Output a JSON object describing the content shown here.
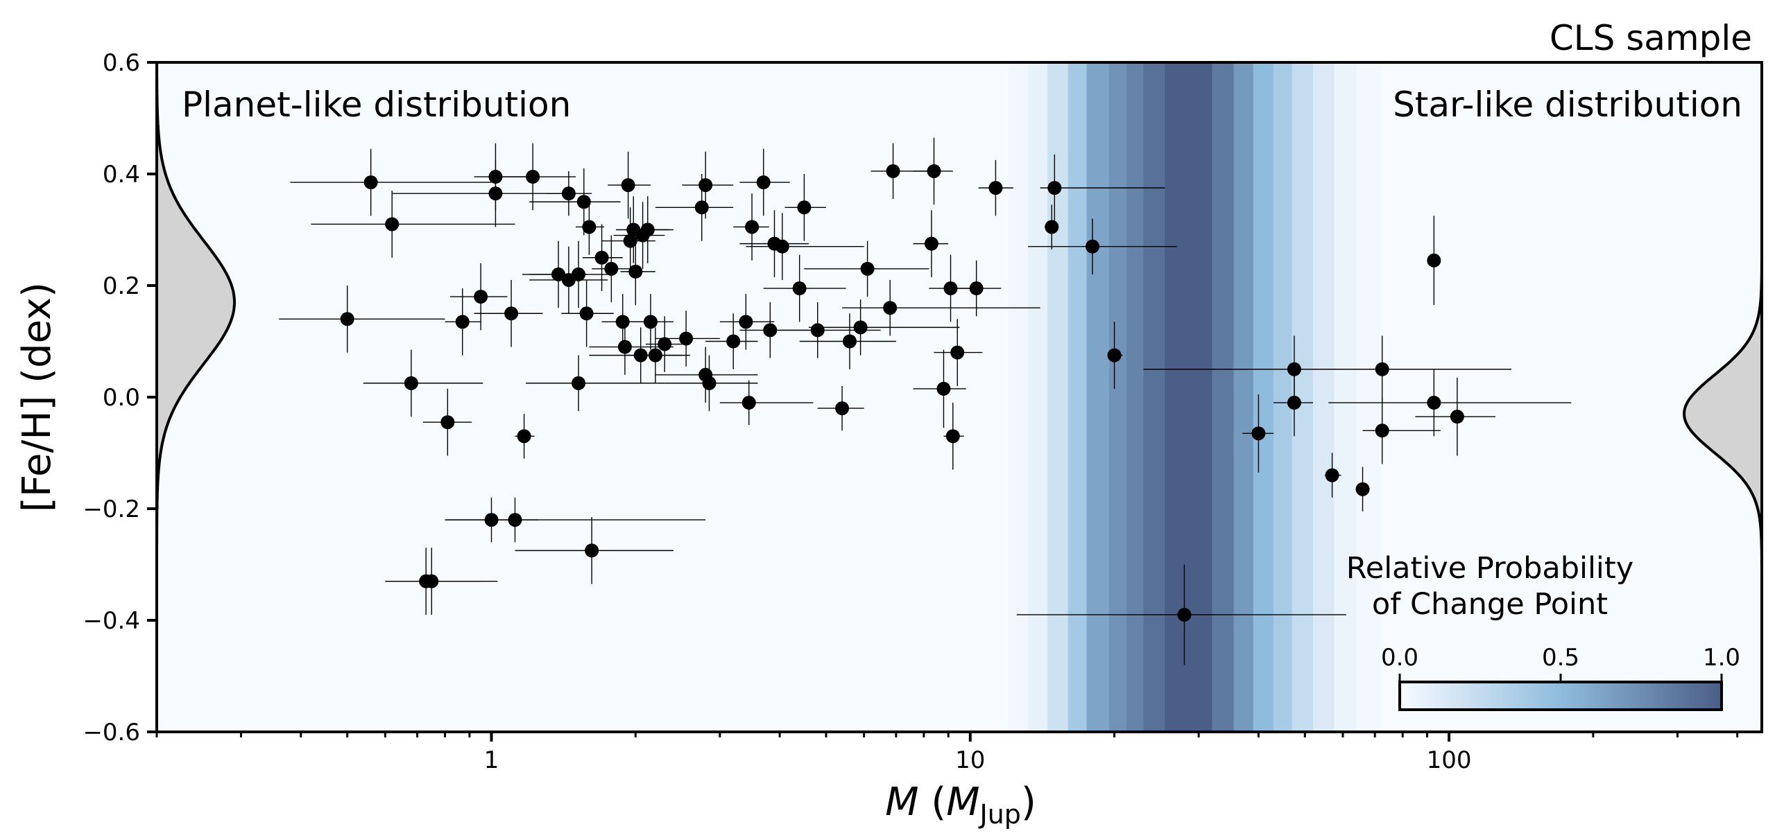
{
  "chart_data": {
    "type": "scatter",
    "title": "CLS sample",
    "xlabel": {
      "symbol": "M",
      "open": " (",
      "unit": "M",
      "unit_sub": "Jup",
      "close": ")"
    },
    "ylabel": "[Fe/H] (dex)",
    "x_scale": "log",
    "xlim": [
      0.2,
      450
    ],
    "ylim": [
      -0.6,
      0.6
    ],
    "x_ticks": [
      {
        "value": 1,
        "label": "1"
      },
      {
        "value": 10,
        "label": "10"
      },
      {
        "value": 100,
        "label": "100"
      }
    ],
    "y_ticks": [
      {
        "value": 0.6,
        "label": "0.6"
      },
      {
        "value": 0.4,
        "label": "0.4"
      },
      {
        "value": 0.2,
        "label": "0.2"
      },
      {
        "value": 0.0,
        "label": "0.0"
      },
      {
        "value": -0.2,
        "label": "−0.2"
      },
      {
        "value": -0.4,
        "label": "−0.4"
      },
      {
        "value": -0.6,
        "label": "−0.6"
      }
    ],
    "annotations": {
      "left": "Planet-like distribution",
      "right": "Star-like distribution"
    },
    "planet_distribution": {
      "mean": 0.17,
      "sigma": 0.11,
      "color": "#d3d3d3"
    },
    "star_distribution": {
      "mean": -0.03,
      "sigma": 0.07,
      "color": "#d3d3d3"
    },
    "change_point_bands": [
      {
        "x0": 0.2,
        "x1": 12,
        "p": 0.0
      },
      {
        "x0": 12,
        "x1": 13.2,
        "p": 0.03
      },
      {
        "x0": 13.2,
        "x1": 14.5,
        "p": 0.08
      },
      {
        "x0": 14.5,
        "x1": 16.0,
        "p": 0.2
      },
      {
        "x0": 16.0,
        "x1": 17.5,
        "p": 0.4
      },
      {
        "x0": 17.5,
        "x1": 19.5,
        "p": 0.62
      },
      {
        "x0": 19.5,
        "x1": 21.2,
        "p": 0.72
      },
      {
        "x0": 21.2,
        "x1": 23.0,
        "p": 0.8
      },
      {
        "x0": 23.0,
        "x1": 25.5,
        "p": 0.9
      },
      {
        "x0": 25.5,
        "x1": 32.0,
        "p": 1.0
      },
      {
        "x0": 32.0,
        "x1": 35.5,
        "p": 0.85
      },
      {
        "x0": 35.5,
        "x1": 39.0,
        "p": 0.68
      },
      {
        "x0": 39.0,
        "x1": 43.0,
        "p": 0.5
      },
      {
        "x0": 43.0,
        "x1": 47.0,
        "p": 0.38
      },
      {
        "x0": 47.0,
        "x1": 52.0,
        "p": 0.25
      },
      {
        "x0": 52.0,
        "x1": 57.5,
        "p": 0.14
      },
      {
        "x0": 57.5,
        "x1": 64.0,
        "p": 0.06
      },
      {
        "x0": 64.0,
        "x1": 72.0,
        "p": 0.02
      },
      {
        "x0": 72.0,
        "x1": 450,
        "p": 0.0
      }
    ],
    "colorbar": {
      "title_line1": "Relative Probability",
      "title_line2": "of Change Point",
      "ticks": [
        {
          "value": 0.0,
          "label": "0.0"
        },
        {
          "value": 0.5,
          "label": "0.5"
        },
        {
          "value": 1.0,
          "label": "1.0"
        }
      ],
      "color_low": "#f7fbff",
      "color_mid": "#8fbcdd",
      "color_high": "#4a5e87"
    },
    "points": [
      {
        "x": 0.5,
        "y": 0.14,
        "xlo": 0.36,
        "xhi": 0.8,
        "ye": 0.06
      },
      {
        "x": 0.56,
        "y": 0.385,
        "xlo": 0.38,
        "xhi": 1.0,
        "ye": 0.06
      },
      {
        "x": 0.62,
        "y": 0.31,
        "xlo": 0.42,
        "xhi": 1.12,
        "ye": 0.06
      },
      {
        "x": 0.68,
        "y": 0.025,
        "xlo": 0.54,
        "xhi": 0.96,
        "ye": 0.06
      },
      {
        "x": 0.73,
        "y": -0.33,
        "xlo": 0.6,
        "xhi": 0.95,
        "ye": 0.06
      },
      {
        "x": 0.75,
        "y": -0.33,
        "xlo": 0.6,
        "xhi": 1.03,
        "ye": 0.06
      },
      {
        "x": 0.81,
        "y": -0.045,
        "xlo": 0.72,
        "xhi": 0.91,
        "ye": 0.06
      },
      {
        "x": 0.87,
        "y": 0.135,
        "xlo": 0.8,
        "xhi": 0.95,
        "ye": 0.06
      },
      {
        "x": 0.95,
        "y": 0.18,
        "xlo": 0.82,
        "xhi": 1.08,
        "ye": 0.06
      },
      {
        "x": 1.0,
        "y": -0.22,
        "xlo": 0.8,
        "xhi": 1.25,
        "ye": 0.04
      },
      {
        "x": 1.02,
        "y": 0.395,
        "xlo": 0.92,
        "xhi": 1.18,
        "ye": 0.06
      },
      {
        "x": 1.02,
        "y": 0.365,
        "xlo": 0.62,
        "xhi": 1.42,
        "ye": 0.06
      },
      {
        "x": 1.1,
        "y": 0.15,
        "xlo": 0.92,
        "xhi": 1.28,
        "ye": 0.06
      },
      {
        "x": 1.12,
        "y": -0.22,
        "xlo": 0.8,
        "xhi": 2.8,
        "ye": 0.04
      },
      {
        "x": 1.17,
        "y": -0.07,
        "xlo": 1.12,
        "xhi": 1.23,
        "ye": 0.04
      },
      {
        "x": 1.22,
        "y": 0.395,
        "xlo": 1.04,
        "xhi": 1.5,
        "ye": 0.06
      },
      {
        "x": 1.38,
        "y": 0.22,
        "xlo": 1.16,
        "xhi": 1.58,
        "ye": 0.06
      },
      {
        "x": 1.45,
        "y": 0.365,
        "xlo": 1.3,
        "xhi": 1.62,
        "ye": 0.04
      },
      {
        "x": 1.45,
        "y": 0.21,
        "xlo": 1.2,
        "xhi": 1.75,
        "ye": 0.06
      },
      {
        "x": 1.52,
        "y": 0.22,
        "xlo": 1.2,
        "xhi": 1.8,
        "ye": 0.06
      },
      {
        "x": 1.52,
        "y": 0.025,
        "xlo": 1.18,
        "xhi": 2.3,
        "ye": 0.05
      },
      {
        "x": 1.56,
        "y": 0.35,
        "xlo": 1.2,
        "xhi": 1.86,
        "ye": 0.06
      },
      {
        "x": 1.58,
        "y": 0.15,
        "xlo": 1.4,
        "xhi": 1.8,
        "ye": 0.06
      },
      {
        "x": 1.6,
        "y": 0.305,
        "xlo": 1.5,
        "xhi": 1.72,
        "ye": 0.05
      },
      {
        "x": 1.62,
        "y": -0.275,
        "xlo": 1.12,
        "xhi": 2.4,
        "ye": 0.06
      },
      {
        "x": 1.7,
        "y": 0.25,
        "xlo": 1.55,
        "xhi": 1.88,
        "ye": 0.06
      },
      {
        "x": 1.78,
        "y": 0.23,
        "xlo": 1.62,
        "xhi": 1.96,
        "ye": 0.06
      },
      {
        "x": 1.88,
        "y": 0.135,
        "xlo": 1.7,
        "xhi": 2.12,
        "ye": 0.05
      },
      {
        "x": 1.9,
        "y": 0.09,
        "xlo": 1.6,
        "xhi": 2.4,
        "ye": 0.05
      },
      {
        "x": 1.93,
        "y": 0.38,
        "xlo": 1.75,
        "xhi": 2.15,
        "ye": 0.06
      },
      {
        "x": 1.95,
        "y": 0.28,
        "xlo": 1.7,
        "xhi": 2.2,
        "ye": 0.06
      },
      {
        "x": 1.98,
        "y": 0.3,
        "xlo": 1.82,
        "xhi": 2.35,
        "ye": 0.06
      },
      {
        "x": 2.0,
        "y": 0.225,
        "xlo": 1.86,
        "xhi": 2.2,
        "ye": 0.06
      },
      {
        "x": 2.05,
        "y": 0.075,
        "xlo": 1.6,
        "xhi": 2.6,
        "ye": 0.05
      },
      {
        "x": 2.07,
        "y": 0.29,
        "xlo": 1.8,
        "xhi": 2.3,
        "ye": 0.06
      },
      {
        "x": 2.12,
        "y": 0.3,
        "xlo": 1.9,
        "xhi": 2.4,
        "ye": 0.06
      },
      {
        "x": 2.15,
        "y": 0.135,
        "xlo": 1.95,
        "xhi": 2.4,
        "ye": 0.05
      },
      {
        "x": 2.2,
        "y": 0.075,
        "xlo": 1.9,
        "xhi": 2.5,
        "ye": 0.05
      },
      {
        "x": 2.3,
        "y": 0.095,
        "xlo": 2.1,
        "xhi": 2.6,
        "ye": 0.05
      },
      {
        "x": 2.55,
        "y": 0.105,
        "xlo": 2.2,
        "xhi": 3.0,
        "ye": 0.05
      },
      {
        "x": 2.75,
        "y": 0.34,
        "xlo": 2.2,
        "xhi": 3.2,
        "ye": 0.06
      },
      {
        "x": 2.8,
        "y": 0.38,
        "xlo": 2.5,
        "xhi": 3.2,
        "ye": 0.06
      },
      {
        "x": 2.8,
        "y": 0.04,
        "xlo": 2.2,
        "xhi": 3.6,
        "ye": 0.05
      },
      {
        "x": 2.85,
        "y": 0.025,
        "xlo": 2.3,
        "xhi": 3.6,
        "ye": 0.05
      },
      {
        "x": 3.2,
        "y": 0.1,
        "xlo": 2.8,
        "xhi": 3.6,
        "ye": 0.05
      },
      {
        "x": 3.4,
        "y": 0.135,
        "xlo": 3.0,
        "xhi": 3.9,
        "ye": 0.05
      },
      {
        "x": 3.45,
        "y": -0.01,
        "xlo": 3.0,
        "xhi": 4.7,
        "ye": 0.04
      },
      {
        "x": 3.5,
        "y": 0.305,
        "xlo": 3.2,
        "xhi": 3.8,
        "ye": 0.06
      },
      {
        "x": 3.7,
        "y": 0.385,
        "xlo": 3.3,
        "xhi": 4.2,
        "ye": 0.06
      },
      {
        "x": 3.82,
        "y": 0.12,
        "xlo": 3.3,
        "xhi": 4.6,
        "ye": 0.05
      },
      {
        "x": 3.9,
        "y": 0.275,
        "xlo": 3.3,
        "xhi": 4.6,
        "ye": 0.06
      },
      {
        "x": 4.05,
        "y": 0.27,
        "xlo": 3.4,
        "xhi": 6.0,
        "ye": 0.06
      },
      {
        "x": 4.4,
        "y": 0.195,
        "xlo": 3.7,
        "xhi": 5.5,
        "ye": 0.06
      },
      {
        "x": 4.5,
        "y": 0.34,
        "xlo": 4.1,
        "xhi": 5.0,
        "ye": 0.06
      },
      {
        "x": 4.8,
        "y": 0.12,
        "xlo": 4.0,
        "xhi": 6.5,
        "ye": 0.05
      },
      {
        "x": 5.4,
        "y": -0.02,
        "xlo": 4.8,
        "xhi": 6.0,
        "ye": 0.04
      },
      {
        "x": 5.6,
        "y": 0.1,
        "xlo": 4.4,
        "xhi": 7.0,
        "ye": 0.05
      },
      {
        "x": 5.9,
        "y": 0.125,
        "xlo": 4.6,
        "xhi": 9.5,
        "ye": 0.05
      },
      {
        "x": 6.1,
        "y": 0.23,
        "xlo": 4.5,
        "xhi": 8.2,
        "ye": 0.05
      },
      {
        "x": 6.8,
        "y": 0.16,
        "xlo": 5.4,
        "xhi": 14.0,
        "ye": 0.05
      },
      {
        "x": 6.9,
        "y": 0.405,
        "xlo": 6.2,
        "xhi": 8.6,
        "ye": 0.05
      },
      {
        "x": 8.3,
        "y": 0.275,
        "xlo": 7.6,
        "xhi": 9.0,
        "ye": 0.06
      },
      {
        "x": 8.4,
        "y": 0.405,
        "xlo": 7.6,
        "xhi": 9.2,
        "ye": 0.06
      },
      {
        "x": 8.8,
        "y": 0.015,
        "xlo": 7.6,
        "xhi": 9.8,
        "ye": 0.07
      },
      {
        "x": 9.1,
        "y": 0.195,
        "xlo": 8.2,
        "xhi": 10.3,
        "ye": 0.06
      },
      {
        "x": 9.2,
        "y": -0.07,
        "xlo": 8.8,
        "xhi": 9.7,
        "ye": 0.06
      },
      {
        "x": 9.4,
        "y": 0.08,
        "xlo": 8.4,
        "xhi": 10.6,
        "ye": 0.06
      },
      {
        "x": 10.3,
        "y": 0.195,
        "xlo": 9.2,
        "xhi": 11.6,
        "ye": 0.05
      },
      {
        "x": 11.3,
        "y": 0.375,
        "xlo": 10.4,
        "xhi": 12.3,
        "ye": 0.05
      },
      {
        "x": 14.8,
        "y": 0.305,
        "xlo": 14.3,
        "xhi": 15.2,
        "ye": 0.04
      },
      {
        "x": 15.0,
        "y": 0.375,
        "xlo": 14.0,
        "xhi": 25.5,
        "ye": 0.06
      },
      {
        "x": 18.0,
        "y": 0.27,
        "xlo": 13.2,
        "xhi": 27.0,
        "ye": 0.05
      },
      {
        "x": 20.0,
        "y": 0.075,
        "xlo": 19.5,
        "xhi": 20.8,
        "ye": 0.06
      },
      {
        "x": 28.0,
        "y": -0.39,
        "xlo": 12.5,
        "xhi": 61.0,
        "ye": 0.09
      },
      {
        "x": 40.0,
        "y": -0.065,
        "xlo": 37.0,
        "xhi": 43.0,
        "ye": 0.07
      },
      {
        "x": 47.5,
        "y": 0.05,
        "xlo": 23.0,
        "xhi": 95.0,
        "ye": 0.06
      },
      {
        "x": 47.5,
        "y": -0.01,
        "xlo": 43.0,
        "xhi": 52.0,
        "ye": 0.06
      },
      {
        "x": 57.0,
        "y": -0.14,
        "xlo": 55.0,
        "xhi": 59.5,
        "ye": 0.04
      },
      {
        "x": 66.0,
        "y": -0.165,
        "xlo": 64.5,
        "xhi": 68.0,
        "ye": 0.04
      },
      {
        "x": 72.5,
        "y": 0.05,
        "xlo": 62.0,
        "xhi": 135.0,
        "ye": 0.06
      },
      {
        "x": 72.5,
        "y": -0.06,
        "xlo": 66.0,
        "xhi": 96.0,
        "ye": 0.06
      },
      {
        "x": 93.0,
        "y": 0.245,
        "xlo": 90.0,
        "xhi": 96.0,
        "ye": 0.08
      },
      {
        "x": 93.0,
        "y": -0.01,
        "xlo": 56.0,
        "xhi": 180.0,
        "ye": 0.06
      },
      {
        "x": 104.0,
        "y": -0.035,
        "xlo": 85.0,
        "xhi": 125.0,
        "ye": 0.07
      }
    ]
  }
}
